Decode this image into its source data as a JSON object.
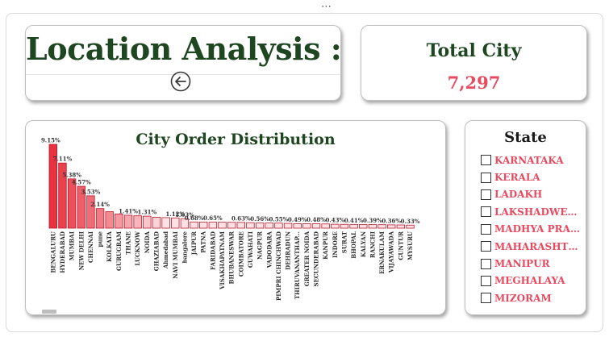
{
  "title_card": {
    "title": "Location Analysis :",
    "back_icon": "circle-arrow-left-icon"
  },
  "kpi": {
    "label": "Total City",
    "value": "7,297",
    "value_color": "#e84a5f",
    "label_color": "#1e4620"
  },
  "chart": {
    "title": "City Order Distribution",
    "colors": {
      "bar_top": "#e8323f",
      "bar_fade": "#fde2e5",
      "stroke": "#b81c2c"
    }
  },
  "chart_data": {
    "type": "bar",
    "title": "City Order Distribution",
    "categories": [
      "BENGALURU",
      "HYDERABAD",
      "MUMBAI",
      "NEW DELHI",
      "CHENNAI",
      "pune",
      "KOLKATA",
      "GURUGRAM",
      "THANE",
      "LUCKNOW",
      "NOIDA",
      "GHAZIABAD",
      "Ahmedabad",
      "NAVI MUMBAI",
      "bangalore",
      "JAIPUR",
      "PATNA",
      "FARIDABAD",
      "VISAKHAPATNAM",
      "BHUBANESWAR",
      "COIMBATORE",
      "GUWAHATI",
      "NAGPUR",
      "VADODARA",
      "PIMPRI CHINCHWAD",
      "DEHRADUN",
      "THIRUVANANTHAP...",
      "GREATER NOIDA",
      "SECUNDERABAD",
      "KANPUR",
      "INDORE",
      "SURAT",
      "BHOPAL",
      "KALYAN",
      "RANCHI",
      "ERNAKULAM",
      "VIJAYAWADA",
      "GUNTUR",
      "MYSURU"
    ],
    "values": [
      9.15,
      7.11,
      5.38,
      4.57,
      3.53,
      2.14,
      1.8,
      1.55,
      1.41,
      1.35,
      1.31,
      1.2,
      1.15,
      1.12,
      1.03,
      0.68,
      0.67,
      0.65,
      0.65,
      0.64,
      0.63,
      0.6,
      0.56,
      0.56,
      0.55,
      0.52,
      0.49,
      0.49,
      0.48,
      0.46,
      0.43,
      0.42,
      0.41,
      0.4,
      0.39,
      0.38,
      0.36,
      0.35,
      0.33
    ],
    "data_labels": [
      "9.15%",
      "7.11%",
      "5.38%",
      "4.57%",
      "3.53%",
      "2.14%",
      "",
      "",
      "1.41%",
      "",
      "1.31%",
      "",
      "",
      "1.12%",
      "1.03%",
      "0.68%",
      "",
      "0.65%",
      "",
      "",
      "0.63%",
      "",
      "0.56%",
      "",
      "0.55%",
      "",
      "0.49%",
      "",
      "0.48%",
      "",
      "0.43%",
      "",
      "0.41%",
      "",
      "0.39%",
      "",
      "0.36%",
      "",
      "0.33%"
    ],
    "ylim": [
      0,
      9.15
    ],
    "grid": false
  },
  "state_slicer": {
    "title": "State",
    "items": [
      {
        "label": "KARNATAKA"
      },
      {
        "label": "KERALA"
      },
      {
        "label": "LADAKH"
      },
      {
        "label": "LAKSHADWEEP"
      },
      {
        "label": "MADHYA PRADE..."
      },
      {
        "label": "MAHARASHTRA"
      },
      {
        "label": "MANIPUR"
      },
      {
        "label": "MEGHALAYA"
      },
      {
        "label": "MIZORAM"
      }
    ],
    "label_color": "#e84a5f"
  },
  "more_icon": "more-options-icon"
}
